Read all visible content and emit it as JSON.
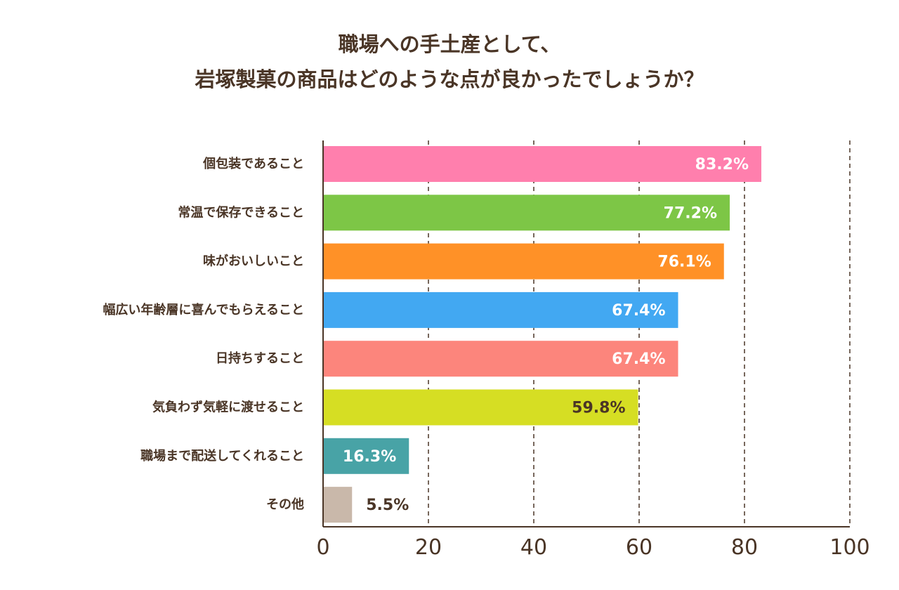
{
  "chart_data": {
    "type": "bar",
    "orientation": "horizontal",
    "title_lines": [
      "職場への手土産として、",
      "岩塚製菓の商品はどのような点が良かったでしょうか？"
    ],
    "categories": [
      "個包装であること",
      "常温で保存できること",
      "味がおいしいこと",
      "幅広い年齢層に喜んでもらえること",
      "日持ちすること",
      "気負わず気軽に渡せること",
      "職場まで配送してくれること",
      "その他"
    ],
    "values": [
      83.2,
      77.2,
      76.1,
      67.4,
      67.4,
      59.8,
      16.3,
      5.5
    ],
    "value_labels": [
      "83.2%",
      "77.2%",
      "76.1%",
      "67.4%",
      "67.4%",
      "59.8%",
      "16.3%",
      "5.5%"
    ],
    "colors": [
      "#ff7fad",
      "#7dc646",
      "#ff9127",
      "#42a8f2",
      "#fc857c",
      "#d6de23",
      "#48a3a6",
      "#c9b8aa"
    ],
    "label_colors": [
      "#ffffff",
      "#ffffff",
      "#ffffff",
      "#ffffff",
      "#ffffff",
      "#4a3526",
      "#ffffff",
      "#4a3526"
    ],
    "x_ticks": [
      "0",
      "20",
      "40",
      "60",
      "80",
      "100"
    ],
    "xlim": [
      0,
      100
    ],
    "grid": "dashed vertical"
  }
}
